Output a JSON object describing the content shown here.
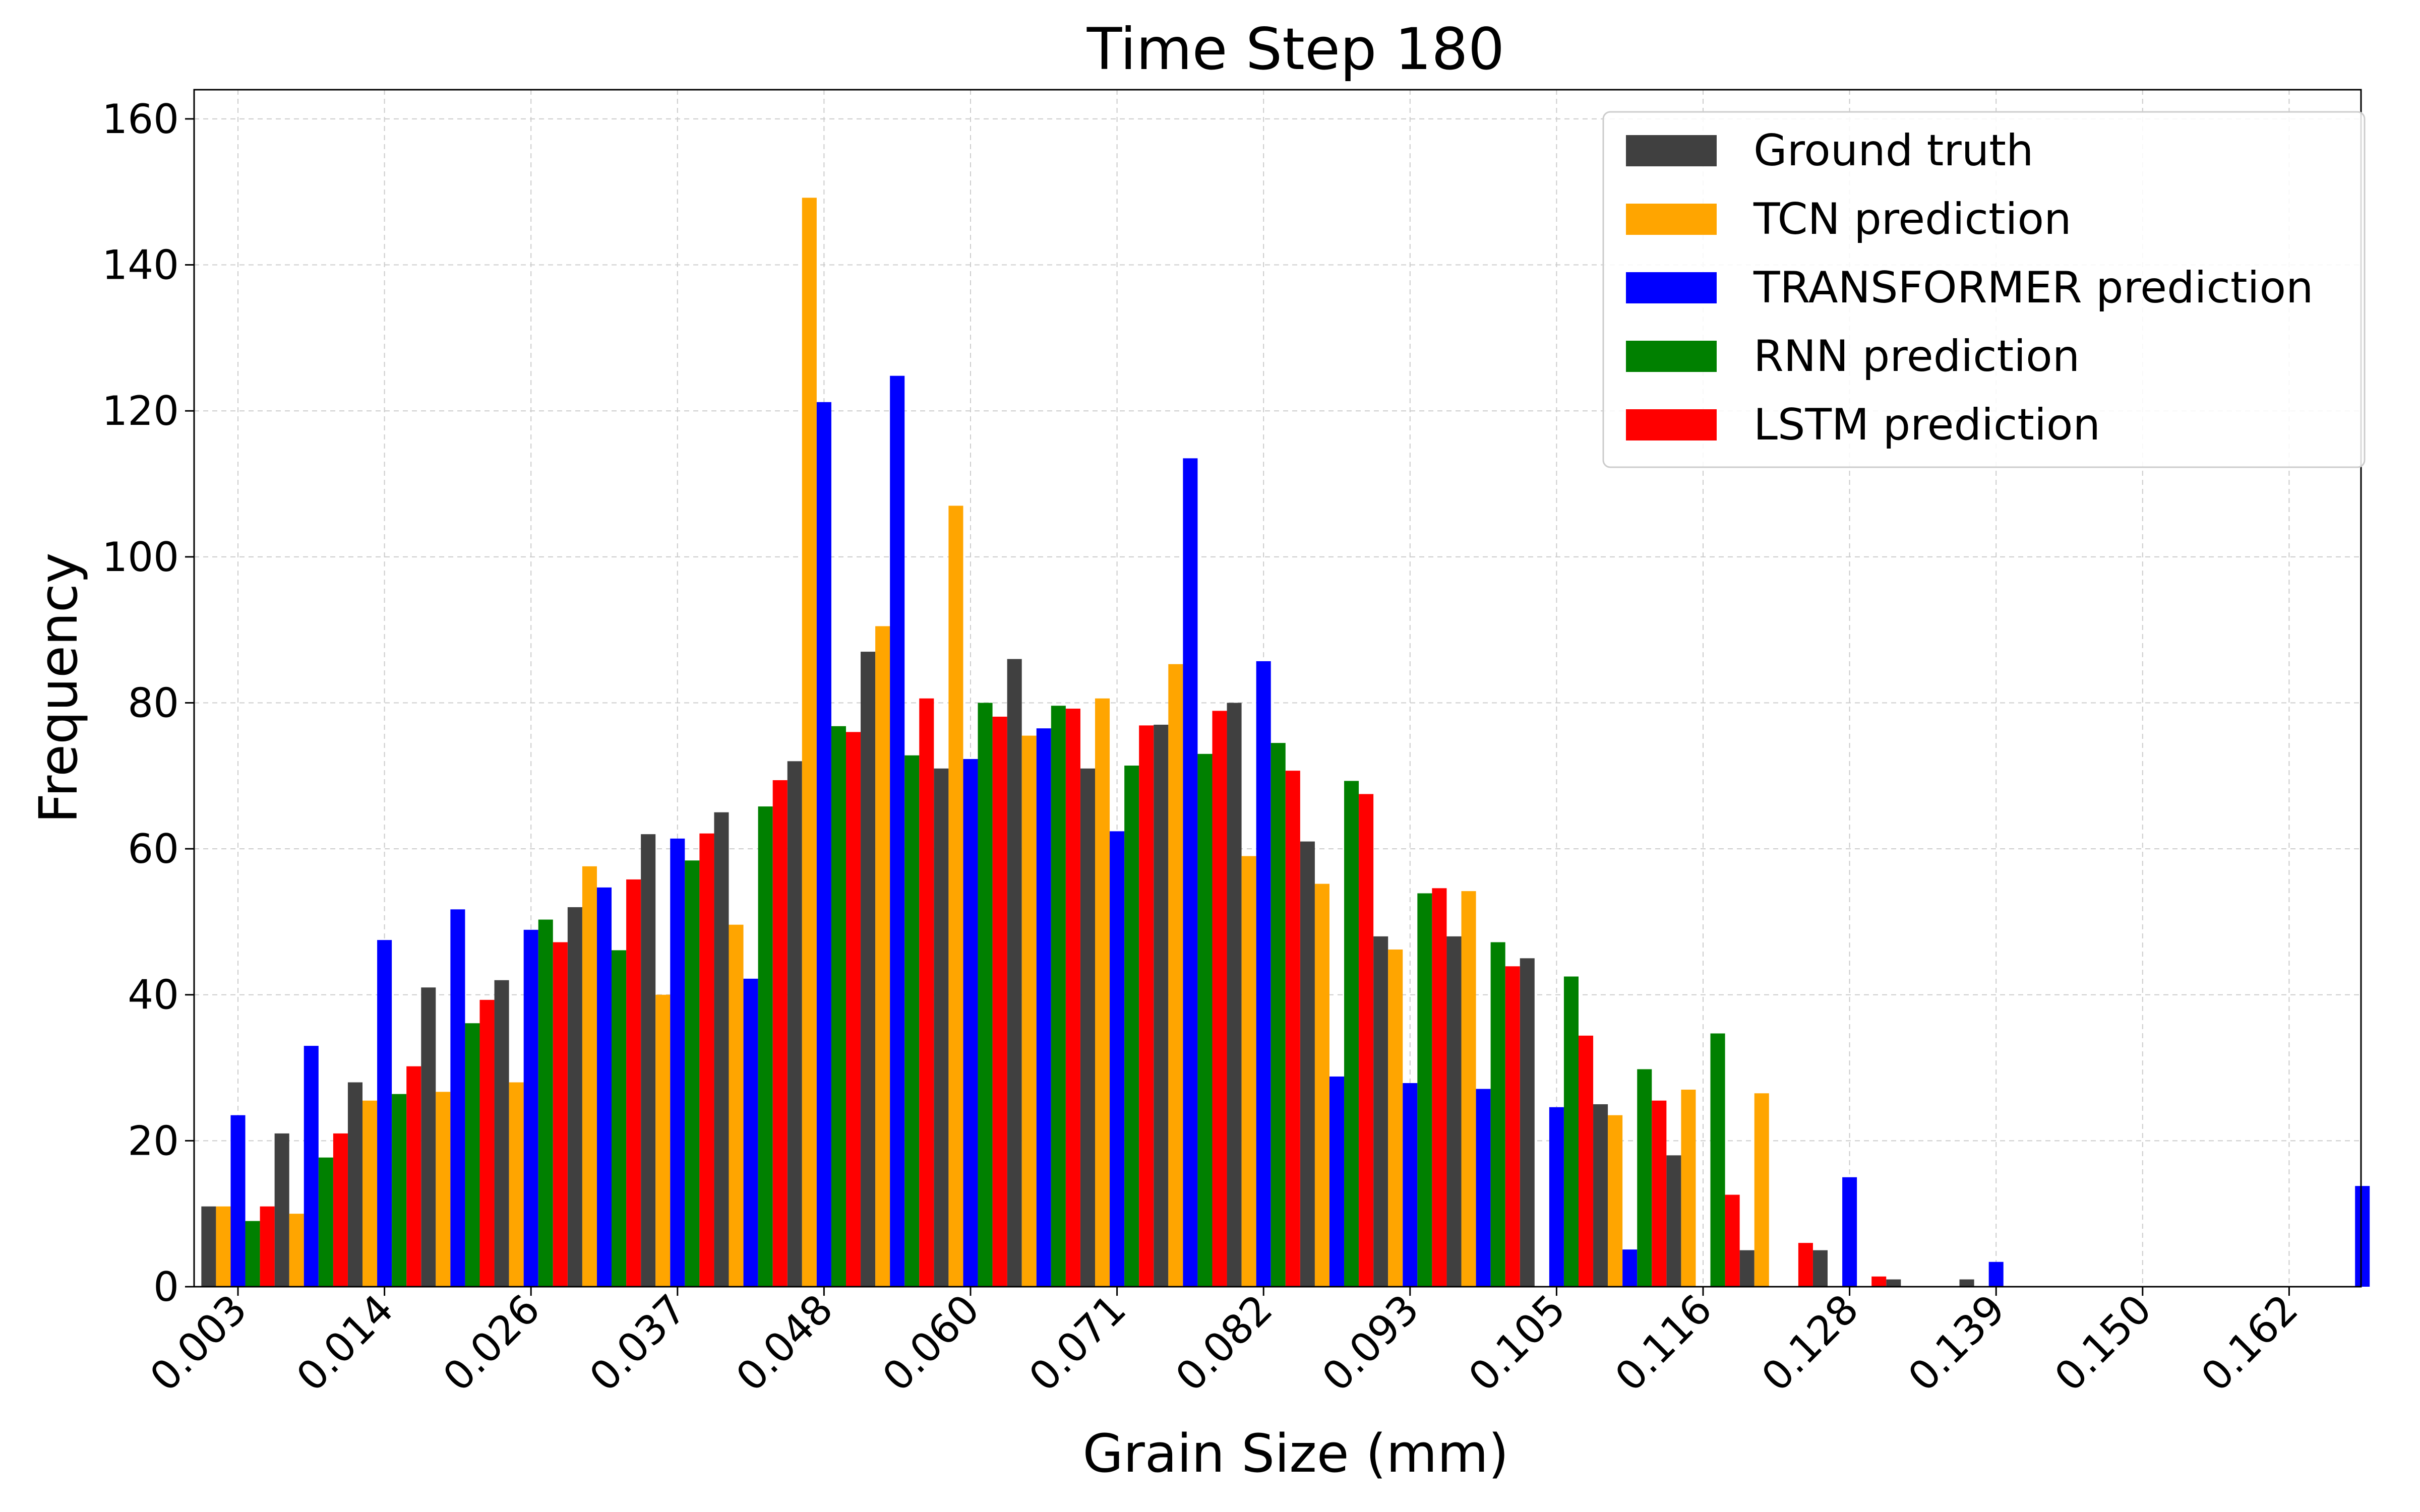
{
  "chart_data": {
    "type": "bar",
    "title": "Time Step 180",
    "xlabel": "Grain Size (mm)",
    "ylabel": "Frequency",
    "ylim": [
      0,
      164
    ],
    "yticks": [
      0,
      20,
      40,
      60,
      80,
      100,
      120,
      140,
      160
    ],
    "x_tick_labels": [
      "0.003",
      "0.014",
      "0.026",
      "0.037",
      "0.048",
      "0.060",
      "0.071",
      "0.082",
      "0.093",
      "0.105",
      "0.116",
      "0.128",
      "0.139",
      "0.150",
      "0.162"
    ],
    "bin_count": 30,
    "grid": true,
    "legend_position": "top-right",
    "series": [
      {
        "name": "Ground truth",
        "color": "#404040",
        "values": [
          11,
          21,
          28,
          41,
          42,
          52,
          62,
          65,
          72,
          87,
          71,
          86,
          71,
          77,
          80,
          61,
          48,
          48,
          45,
          25,
          18,
          5,
          5,
          1,
          1,
          0,
          0,
          0,
          0,
          0
        ]
      },
      {
        "name": "TCN prediction",
        "color": "#ffa500",
        "values": [
          11,
          10,
          25.5,
          26.7,
          28,
          57.6,
          40,
          49.6,
          149.2,
          90.5,
          107,
          75.5,
          80.6,
          85.3,
          59,
          55.2,
          46.2,
          54.2,
          0,
          23.5,
          27,
          26.5,
          0,
          0,
          0,
          0,
          0,
          0,
          0,
          0
        ]
      },
      {
        "name": "TRANSFORMER prediction",
        "color": "#0000ff",
        "values": [
          23.5,
          33,
          47.5,
          51.7,
          48.9,
          54.7,
          61.4,
          42.2,
          121.2,
          124.8,
          72.3,
          76.5,
          62.4,
          113.5,
          85.7,
          28.8,
          27.9,
          27.1,
          24.6,
          5.1,
          0,
          0,
          15,
          0,
          3.4,
          0,
          0,
          0,
          0,
          13.8
        ]
      },
      {
        "name": "RNN prediction",
        "color": "#008000",
        "values": [
          9,
          17.7,
          26.4,
          36.1,
          50.3,
          46.1,
          58.4,
          65.8,
          76.8,
          72.8,
          80,
          79.6,
          71.4,
          73,
          74.5,
          69.3,
          53.9,
          47.2,
          42.5,
          29.8,
          34.7,
          0,
          0,
          0,
          0,
          0,
          0,
          0,
          0,
          0
        ]
      },
      {
        "name": "LSTM prediction",
        "color": "#ff0000",
        "values": [
          11,
          21,
          30.2,
          39.3,
          47.2,
          55.8,
          62.1,
          69.4,
          76,
          80.6,
          78.1,
          79.2,
          76.9,
          78.9,
          70.7,
          67.5,
          54.6,
          43.9,
          34.4,
          25.5,
          12.6,
          6,
          1.4,
          0,
          0,
          0,
          0,
          0,
          0,
          0
        ]
      }
    ]
  }
}
